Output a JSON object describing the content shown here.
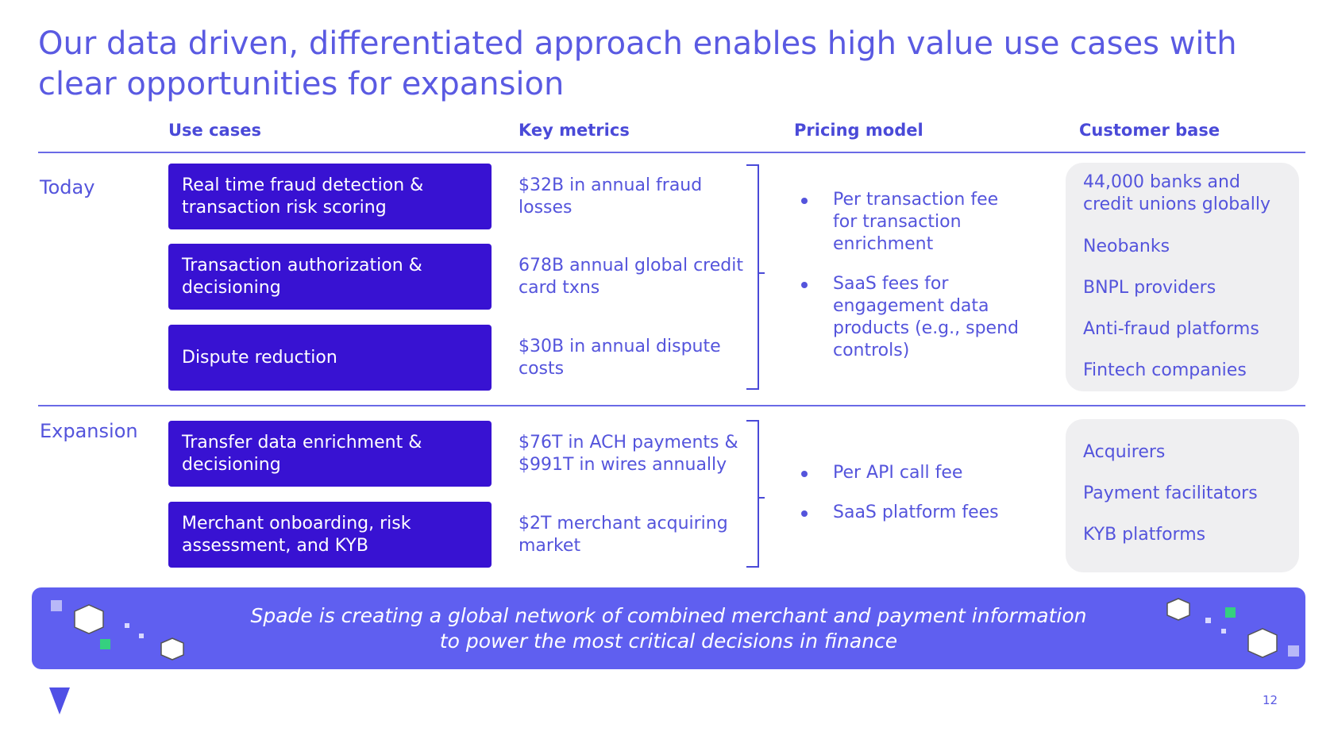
{
  "title": "Our data driven, differentiated approach enables high value use cases with clear opportunities for expansion",
  "headers": [
    "Use cases",
    "Key metrics",
    "Pricing model",
    "Customer base"
  ],
  "sections": [
    {
      "label": "Today",
      "use_cases": [
        "Real time fraud detection & transaction risk scoring",
        "Transaction authorization & decisioning",
        "Dispute reduction"
      ],
      "metrics": [
        "$32B in annual fraud losses",
        "678B annual global credit card txns",
        "$30B in annual dispute costs"
      ],
      "pricing": [
        "Per transaction fee for transaction enrichment",
        "SaaS fees for engagement data products (e.g., spend controls)"
      ],
      "customers": [
        "44,000 banks and credit unions globally",
        "Neobanks",
        "BNPL providers",
        "Anti-fraud platforms",
        "Fintech companies"
      ]
    },
    {
      "label": "Expansion",
      "use_cases": [
        "Transfer data enrichment & decisioning",
        "Merchant onboarding, risk assessment, and KYB"
      ],
      "metrics": [
        "$76T in ACH payments & $991T in wires annually",
        "$2T merchant acquiring market"
      ],
      "pricing": [
        "Per API call fee",
        "SaaS platform fees"
      ],
      "customers": [
        "Acquirers",
        "Payment facilitators",
        "KYB platforms"
      ]
    }
  ],
  "banner": "Spade is creating a global network of combined merchant and payment information to power the most critical decisions in finance",
  "page_number": "12"
}
